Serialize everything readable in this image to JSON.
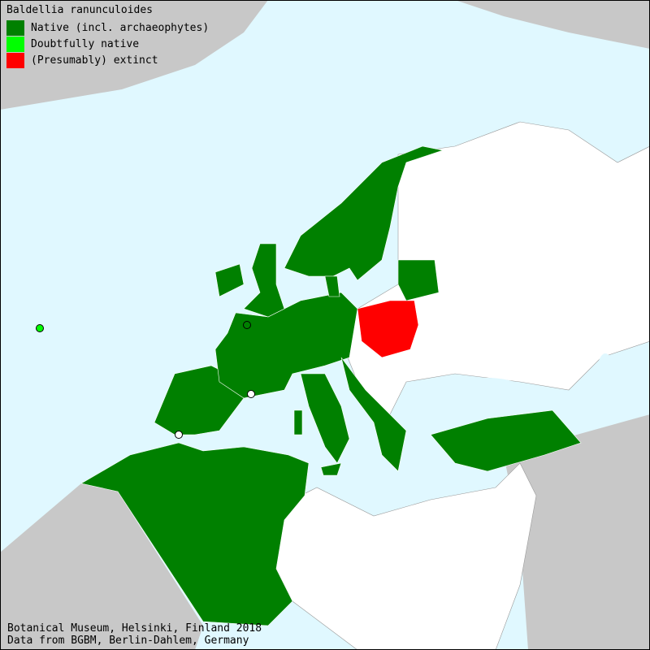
{
  "title": "Baldellia ranunculoides",
  "legend": [
    {
      "label": "Native (incl. archaeophytes)",
      "color": "#008000"
    },
    {
      "label": "Doubtfully native",
      "color": "#00ff00"
    },
    {
      "label": "(Presumably) extinct",
      "color": "#ff0000"
    }
  ],
  "footer": {
    "line1": "Botanical Museum, Helsinki, Finland 2018",
    "line2": "Data from BGBM, Berlin-Dahlem, Germany"
  },
  "colors": {
    "sea": "#e0f8ff",
    "outside": "#c8c8c8",
    "no_record": "#ffffff"
  },
  "native_areas": [
    "Norway",
    "Sweden",
    "Denmark",
    "Estonia",
    "Latvia",
    "Lithuania",
    "Ireland",
    "United Kingdom",
    "France",
    "Belgium",
    "Netherlands",
    "Germany",
    "Switzerland",
    "Austria",
    "Italy",
    "Spain",
    "Portugal",
    "Morocco",
    "Algeria",
    "Tunisia",
    "Croatia",
    "Albania",
    "Greece",
    "Turkey",
    "Sardinia",
    "Corsica",
    "Sicily"
  ],
  "extinct_areas": [
    "Poland"
  ]
}
